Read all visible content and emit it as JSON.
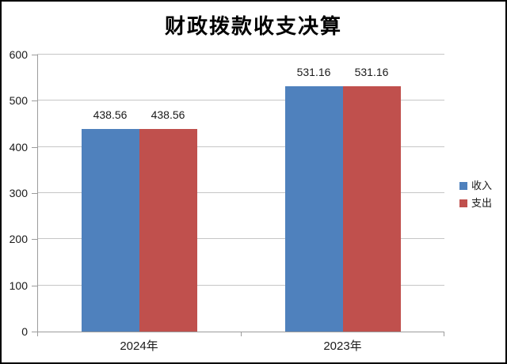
{
  "chart_data": {
    "type": "bar",
    "title": "财政拨款收支决算",
    "categories": [
      "2024年",
      "2023年"
    ],
    "series": [
      {
        "name": "收入",
        "color": "#4F81BD",
        "values": [
          438.56,
          531.16
        ]
      },
      {
        "name": "支出",
        "color": "#C0504D",
        "values": [
          438.56,
          531.16
        ]
      }
    ],
    "data_labels": [
      "438.56",
      "531.16"
    ],
    "ylim": [
      0,
      600
    ],
    "yticks": [
      0,
      100,
      200,
      300,
      400,
      500,
      600
    ],
    "grid": true,
    "legend_position": "right",
    "colors": {
      "gridline": "#c6c6c6",
      "axis": "#9c9c9c",
      "text": "#1a1a1a",
      "background": "#ffffff",
      "border": "#000000"
    }
  }
}
